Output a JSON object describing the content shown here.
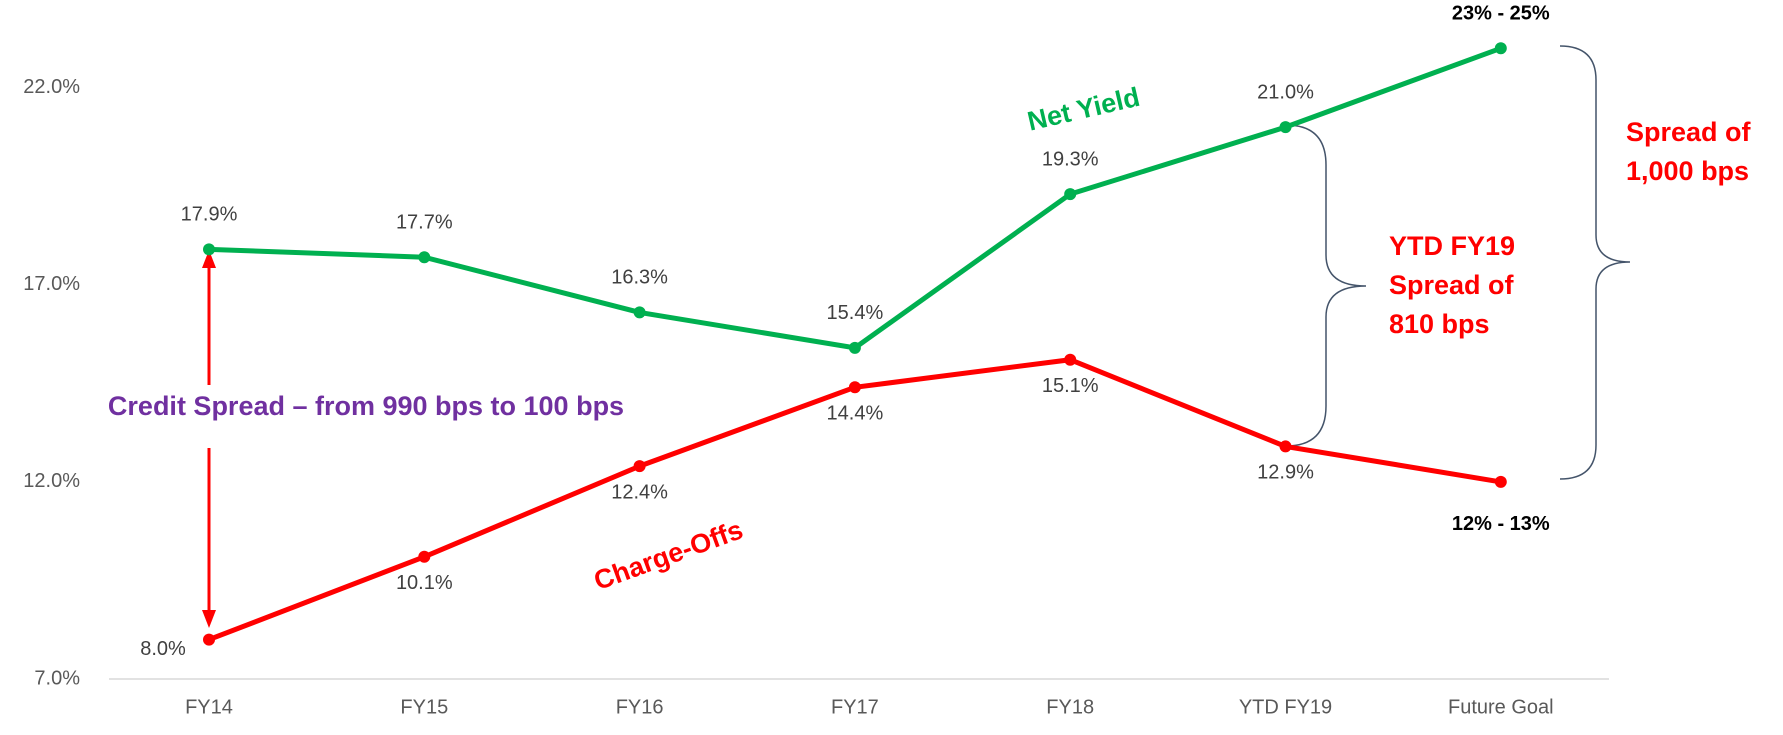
{
  "chart_data": {
    "type": "line",
    "categories": [
      "FY14",
      "FY15",
      "FY16",
      "FY17",
      "FY18",
      "YTD FY19",
      "Future Goal"
    ],
    "ylim": [
      7,
      24.2
    ],
    "yticks": [
      {
        "value": 7,
        "label": "7.0%"
      },
      {
        "value": 12,
        "label": "12.0%"
      },
      {
        "value": 17,
        "label": "17.0%"
      },
      {
        "value": 22,
        "label": "22.0%"
      }
    ],
    "series": [
      {
        "name": "Net Yield",
        "color": "#00b050",
        "values": [
          17.9,
          17.7,
          16.3,
          15.4,
          19.3,
          21.0,
          23
        ],
        "value_labels": [
          "17.9%",
          "17.7%",
          "16.3%",
          "15.4%",
          "19.3%",
          "21.0%",
          "23% - 25%"
        ]
      },
      {
        "name": "Charge-Offs",
        "color": "#ff0000",
        "values": [
          8.0,
          10.1,
          12.4,
          14.4,
          15.1,
          12.9,
          12
        ],
        "value_labels": [
          "8.0%",
          "10.1%",
          "12.4%",
          "14.4%",
          "15.1%",
          "12.9%",
          "12% - 13%"
        ]
      }
    ],
    "annotations": {
      "credit_spread": "Credit Spread – from 990 bps to 100 bps",
      "ytd_spread": [
        "YTD FY19",
        "Spread of",
        "810 bps"
      ],
      "total_spread": [
        "Spread of",
        "1,000 bps"
      ]
    }
  }
}
